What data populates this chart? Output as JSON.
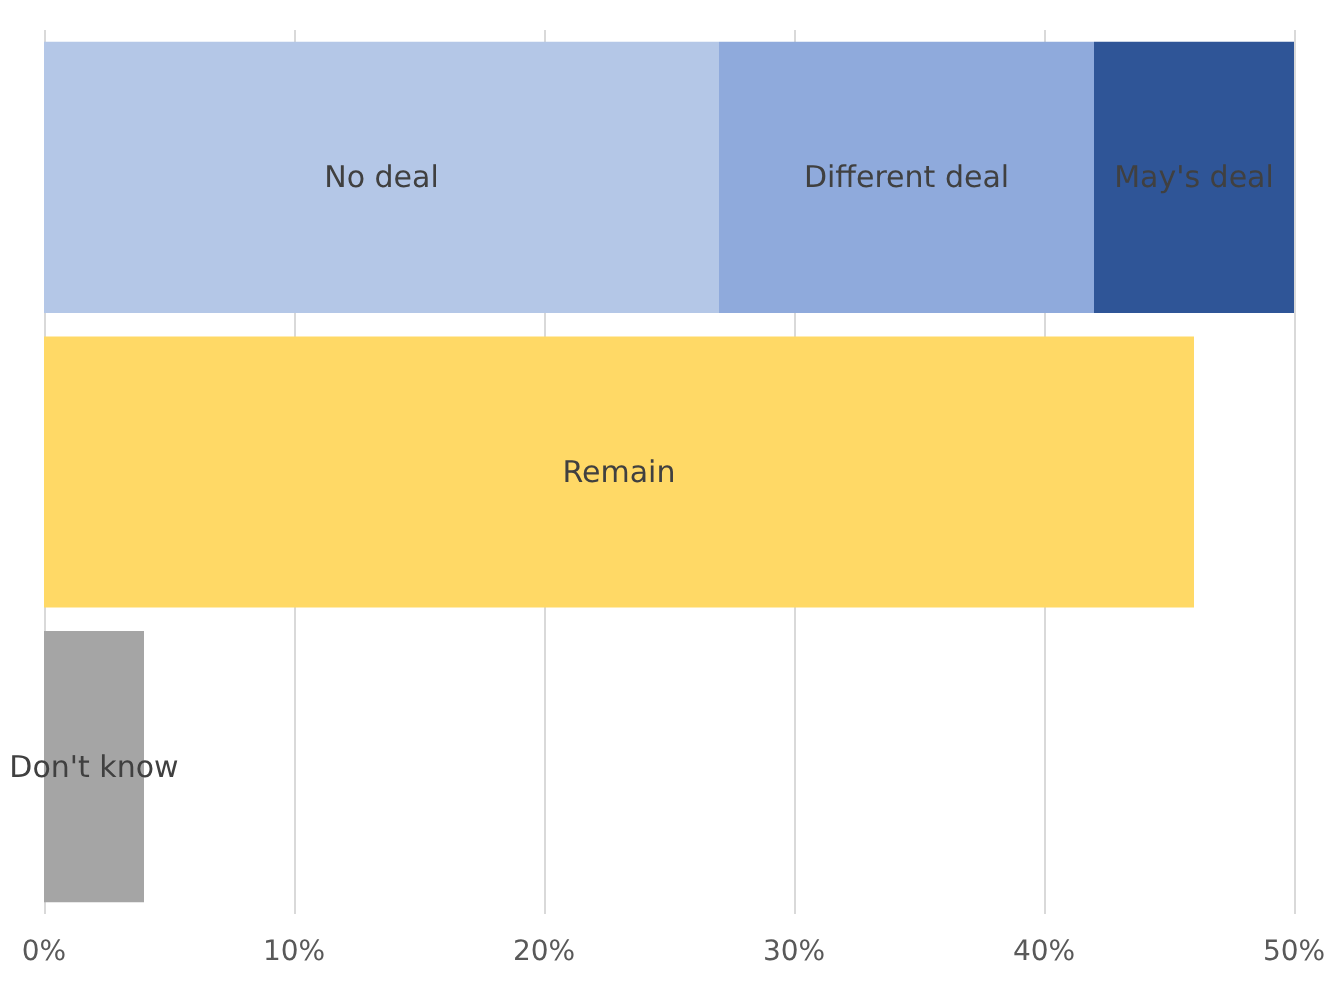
{
  "chart_data": {
    "type": "bar",
    "orientation": "horizontal",
    "stacked": true,
    "categories": [
      null,
      null,
      null
    ],
    "series": [
      {
        "name": "No deal",
        "color": "#b4c7e7",
        "values": [
          27,
          null,
          null
        ]
      },
      {
        "name": "Different deal",
        "color": "#8faadc",
        "values": [
          15,
          null,
          null
        ]
      },
      {
        "name": "May's deal",
        "color": "#2f5597",
        "values": [
          8,
          null,
          null
        ]
      },
      {
        "name": "Remain",
        "color": "#ffd966",
        "values": [
          null,
          46,
          null
        ]
      },
      {
        "name": "Don't know",
        "color": "#a5a5a5",
        "values": [
          null,
          null,
          4
        ]
      }
    ],
    "xlim": [
      0,
      50
    ],
    "xticks": [
      {
        "value": 0,
        "label": "0%"
      },
      {
        "value": 10,
        "label": "10%"
      },
      {
        "value": 20,
        "label": "20%"
      },
      {
        "value": 30,
        "label": "30%"
      },
      {
        "value": 40,
        "label": "40%"
      },
      {
        "value": 50,
        "label": "50%"
      }
    ],
    "grid": "x",
    "legend": false
  }
}
